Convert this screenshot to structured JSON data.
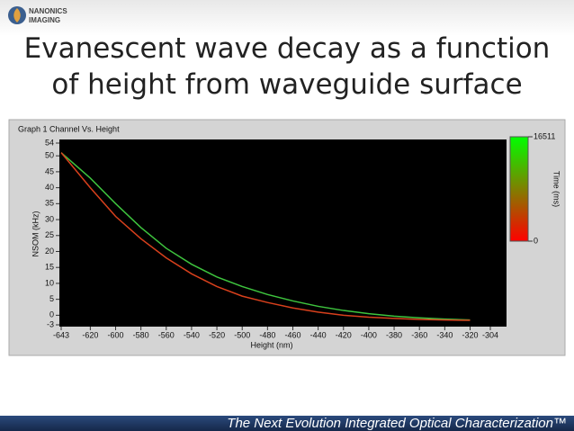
{
  "slide": {
    "logo": [
      "NANONICS",
      "IMAGING"
    ],
    "title": [
      "Evanescent wave decay as a function",
      "of height from waveguide surface"
    ],
    "footer": "The Next Evolution Integrated Optical Characterization™"
  },
  "chart_data": {
    "type": "line",
    "title": "Graph 1 Channel Vs. Height",
    "xlabel": "Height (nm)",
    "ylabel": "NSOM (kHz)",
    "x": [
      -643,
      -620,
      -600,
      -580,
      -560,
      -540,
      -520,
      -500,
      -480,
      -460,
      -440,
      -420,
      -400,
      -380,
      -360,
      -340,
      -320
    ],
    "series": [
      {
        "color": "#3ec43e",
        "values": [
          51,
          43,
          35,
          27.5,
          21,
          16,
          12,
          9,
          6.5,
          4.5,
          2.8,
          1.5,
          0.5,
          -0.3,
          -0.8,
          -1.2,
          -1.5
        ]
      },
      {
        "color": "#d8401c",
        "values": [
          51,
          40,
          31,
          24,
          18,
          13,
          9,
          6,
          4,
          2.3,
          1,
          0,
          -0.6,
          -1,
          -1.3,
          -1.5,
          -1.6
        ]
      }
    ],
    "xlim": [
      -643,
      -304
    ],
    "ylim": [
      -3,
      54
    ],
    "xticks": [
      -643,
      -620,
      -600,
      -580,
      -560,
      -540,
      -520,
      -500,
      -480,
      -460,
      -440,
      -420,
      -400,
      -380,
      -360,
      -340,
      -320,
      -304
    ],
    "yticks": [
      -3,
      0,
      5,
      10,
      15,
      20,
      25,
      30,
      35,
      40,
      45,
      50,
      54
    ],
    "grid": false,
    "colorbar": {
      "label": "Time (ms)",
      "lim": [
        0,
        16511
      ],
      "ticks": [
        0,
        16511
      ],
      "colors": [
        "#ff0000",
        "#00ff00"
      ]
    }
  }
}
